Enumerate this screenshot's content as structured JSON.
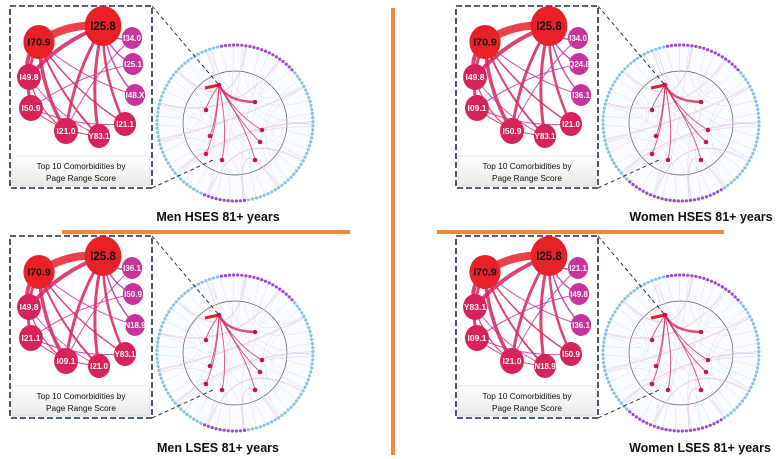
{
  "panels": [
    {
      "id": "men-hses",
      "caption": "Men HSES 81+ years",
      "box_title_line1": "Top 10 Comorbidities by",
      "box_title_line2": "Page Range Score",
      "nodes": [
        "I25.8",
        "I70.9",
        "I34.0",
        "I49.8",
        "I25.1",
        "I48.X",
        "I50.9",
        "I21.1",
        "I21.0",
        "Y83.1"
      ]
    },
    {
      "id": "women-hses",
      "caption": "Women HSES 81+ years",
      "box_title_line1": "Top 10 Comorbidities by",
      "box_title_line2": "Page Range Score",
      "nodes": [
        "I25.8",
        "I70.9",
        "I34.0",
        "I49.8",
        "Q24.8",
        "I36.1",
        "I09.1",
        "I21.0",
        "I50.9",
        "Y83.1"
      ]
    },
    {
      "id": "men-lses",
      "caption": "Men LSES 81+ years",
      "box_title_line1": "Top 10 Comorbidities by",
      "box_title_line2": "Page Range Score",
      "nodes": [
        "I25.8",
        "I70.9",
        "I36.1",
        "I49.8",
        "I50.9",
        "N18.9",
        "I21.1",
        "Y83.1",
        "I09.1",
        "I21.0"
      ]
    },
    {
      "id": "women-lses",
      "caption": "Women LSES 81+ years",
      "box_title_line1": "Top 10 Comorbidities by",
      "box_title_line2": "Page Range Score",
      "nodes": [
        "I25.8",
        "I70.9",
        "I21.1",
        "Y83.1",
        "I49.8",
        "I36.1",
        "I09.1",
        "I50.9",
        "I21.0",
        "N18.9"
      ]
    }
  ],
  "colors": {
    "divider": "#f08a3a",
    "box_border": "#1f2d4d",
    "top_node": "#e8202a",
    "mid_node": "#d6235a",
    "low_node": "#c8359a",
    "ring_dots_purple": "#a04ad0",
    "ring_dots_blue": "#8cc4e0"
  }
}
